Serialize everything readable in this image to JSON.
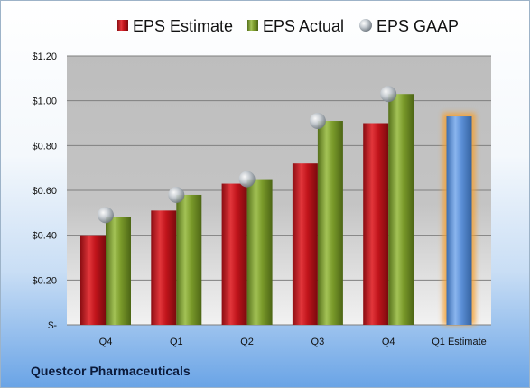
{
  "company_label": "Questcor Pharmaceuticals",
  "colors": {
    "estimate": "#c0141b",
    "actual": "#7a9a2a",
    "gaap": "#a9b0b8",
    "q1_estimate": "#5b8fd6",
    "q1_estimate_glow": "#f5a030"
  },
  "chart_data": {
    "type": "bar",
    "categories": [
      "Q4",
      "Q1",
      "Q2",
      "Q3",
      "Q4",
      "Q1 Estimate"
    ],
    "series": [
      {
        "name": "EPS Estimate",
        "values": [
          0.4,
          0.51,
          0.63,
          0.72,
          0.9,
          null
        ]
      },
      {
        "name": "EPS Actual",
        "values": [
          0.48,
          0.58,
          0.65,
          0.91,
          1.03,
          0.93
        ]
      },
      {
        "name": "EPS GAAP",
        "values": [
          0.49,
          0.58,
          0.65,
          0.91,
          1.03,
          null
        ]
      }
    ],
    "ylim": [
      0,
      1.2
    ],
    "y_ticks": [
      0,
      0.2,
      0.4,
      0.6,
      0.8,
      1.0,
      1.2
    ],
    "y_tick_labels": [
      "$-",
      "$0.20",
      "$0.40",
      "$0.60",
      "$0.80",
      "$1.00",
      "$1.20"
    ],
    "grid": true,
    "legend_position": "top"
  }
}
